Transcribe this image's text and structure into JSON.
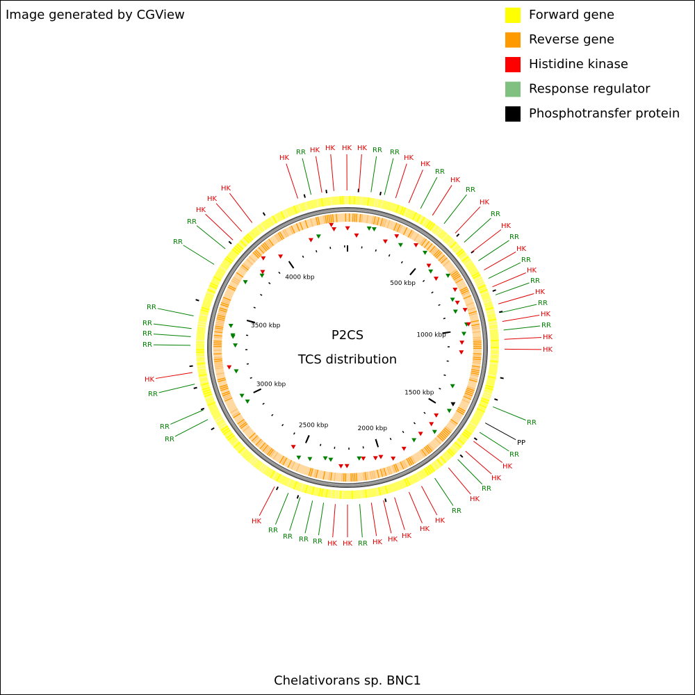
{
  "header": {
    "credit": "Image generated by CGView"
  },
  "legend": [
    {
      "label": "Forward gene",
      "color": "#ffff00"
    },
    {
      "label": "Reverse gene",
      "color": "#ff9900"
    },
    {
      "label": "Histidine kinase",
      "color": "#ff0000"
    },
    {
      "label": "Response regulator",
      "color": "#80c080"
    },
    {
      "label": "Phosphotransfer protein",
      "color": "#000000"
    }
  ],
  "map": {
    "title": "P2CS",
    "subtitle": "TCS distribution",
    "organism": "Chelativorans sp. BNC1",
    "ticks": [
      {
        "value": 500,
        "label": "500 kbp"
      },
      {
        "value": 1000,
        "label": "1000 kbp"
      },
      {
        "value": 1500,
        "label": "1500 kbp"
      },
      {
        "value": 2000,
        "label": "2000 kbp"
      },
      {
        "value": 2500,
        "label": "2500 kbp"
      },
      {
        "value": 3000,
        "label": "3000 kbp"
      },
      {
        "value": 3500,
        "label": "3500 kbp"
      },
      {
        "value": 4000,
        "label": "4000 kbp"
      }
    ],
    "labels": [
      {
        "text": "HK",
        "color": "#e00000"
      },
      {
        "text": "RR",
        "color": "#008000"
      },
      {
        "text": "HK",
        "color": "#e00000"
      },
      {
        "text": "HK",
        "color": "#e00000"
      },
      {
        "text": "HK",
        "color": "#e00000"
      },
      {
        "text": "HK",
        "color": "#e00000"
      },
      {
        "text": "RR",
        "color": "#008000"
      },
      {
        "text": "RR",
        "color": "#008000"
      },
      {
        "text": "HK",
        "color": "#e00000"
      },
      {
        "text": "HK",
        "color": "#e00000"
      },
      {
        "text": "RR",
        "color": "#008000"
      },
      {
        "text": "HK",
        "color": "#e00000"
      },
      {
        "text": "RR",
        "color": "#008000"
      },
      {
        "text": "HK",
        "color": "#e00000"
      },
      {
        "text": "RR",
        "color": "#008000"
      },
      {
        "text": "HK",
        "color": "#e00000"
      },
      {
        "text": "RR",
        "color": "#008000"
      },
      {
        "text": "HK",
        "color": "#e00000"
      },
      {
        "text": "RR",
        "color": "#008000"
      },
      {
        "text": "HK",
        "color": "#e00000"
      },
      {
        "text": "RR",
        "color": "#008000"
      },
      {
        "text": "HK",
        "color": "#e00000"
      },
      {
        "text": "RR",
        "color": "#008000"
      },
      {
        "text": "HK",
        "color": "#e00000"
      },
      {
        "text": "RR",
        "color": "#008000"
      },
      {
        "text": "HK",
        "color": "#e00000"
      },
      {
        "text": "HK",
        "color": "#e00000"
      },
      {
        "text": "RR",
        "color": "#008000"
      },
      {
        "text": "PP",
        "color": "#000000"
      },
      {
        "text": "RR",
        "color": "#008000"
      },
      {
        "text": "HK",
        "color": "#e00000"
      },
      {
        "text": "HK",
        "color": "#e00000"
      },
      {
        "text": "RR",
        "color": "#008000"
      },
      {
        "text": "HK",
        "color": "#e00000"
      },
      {
        "text": "RR",
        "color": "#008000"
      },
      {
        "text": "HK",
        "color": "#e00000"
      },
      {
        "text": "HK",
        "color": "#e00000"
      },
      {
        "text": "HK",
        "color": "#e00000"
      },
      {
        "text": "HK",
        "color": "#e00000"
      },
      {
        "text": "HK",
        "color": "#e00000"
      },
      {
        "text": "RR",
        "color": "#008000"
      },
      {
        "text": "HK",
        "color": "#e00000"
      },
      {
        "text": "HK",
        "color": "#e00000"
      },
      {
        "text": "RR",
        "color": "#008000"
      },
      {
        "text": "RR",
        "color": "#008000"
      },
      {
        "text": "RR",
        "color": "#008000"
      },
      {
        "text": "RR",
        "color": "#008000"
      },
      {
        "text": "HK",
        "color": "#e00000"
      },
      {
        "text": "RR",
        "color": "#008000"
      },
      {
        "text": "RR",
        "color": "#008000"
      },
      {
        "text": "RR",
        "color": "#008000"
      },
      {
        "text": "HK",
        "color": "#e00000"
      },
      {
        "text": "RR",
        "color": "#008000"
      },
      {
        "text": "RR",
        "color": "#008000"
      },
      {
        "text": "RR",
        "color": "#008000"
      },
      {
        "text": "RR",
        "color": "#008000"
      },
      {
        "text": "RR",
        "color": "#008000"
      },
      {
        "text": "RR",
        "color": "#008000"
      },
      {
        "text": "HK",
        "color": "#e00000"
      },
      {
        "text": "HK",
        "color": "#e00000"
      },
      {
        "text": "HK",
        "color": "#e00000"
      }
    ]
  }
}
